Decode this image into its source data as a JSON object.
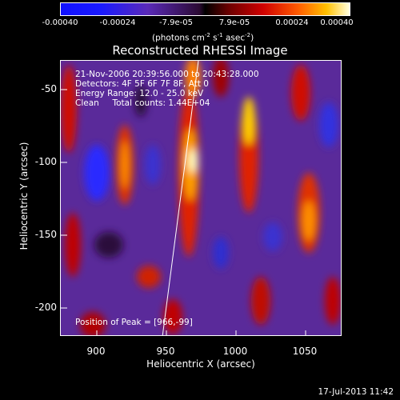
{
  "colorbar": {
    "ticks": [
      "-0.00040",
      "-0.00024",
      "-7.9e-05",
      "7.9e-05",
      "0.00024",
      "0.00040"
    ],
    "units_main": "(photons cm",
    "units_exp1": "-2",
    "units_s": " s",
    "units_exp2": "-1",
    "units_asec": " asec",
    "units_exp3": "-2",
    "units_close": ")"
  },
  "title": "Reconstructed RHESSI Image",
  "overlay": {
    "line1": "21-Nov-2006 20:39:56.000 to 20:43:28.000",
    "line2": "Detectors: 4F 5F 6F 7F 8F, Att 0",
    "line3": "Energy Range: 12.0 - 25.0 keV",
    "line4": "Clean     Total counts: 1.44E+04",
    "peak": "Position of Peak = [966,-99]"
  },
  "axes": {
    "xlabel": "Heliocentric X (arcsec)",
    "ylabel": "Heliocentric Y (arcsec)",
    "x_ticks": [
      "900",
      "950",
      "1000",
      "1050"
    ],
    "y_ticks": [
      "-50",
      "-100",
      "-150",
      "-200"
    ]
  },
  "footer": {
    "timestamp": "17-Jul-2013 11:42"
  }
}
